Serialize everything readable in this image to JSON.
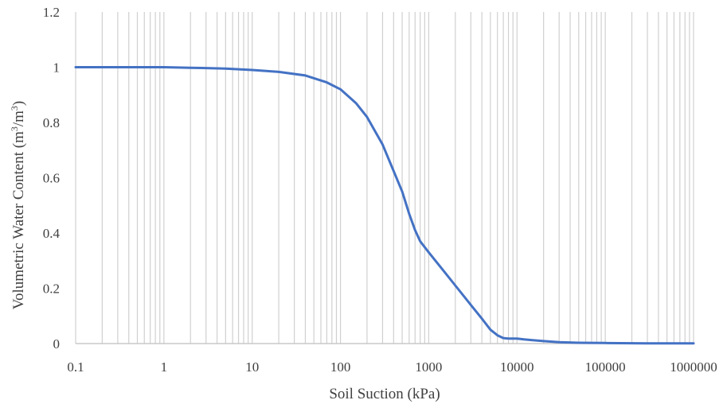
{
  "chart_data": {
    "type": "line",
    "xscale": "log",
    "xlabel": "Soil Suction (kPa)",
    "ylabel_main": "Volumetric Water Content (m",
    "ylabel_sup1": "3",
    "ylabel_mid": "/m",
    "ylabel_sup2": "3",
    "ylabel_end": ")",
    "xlim": [
      0.1,
      1000000
    ],
    "ylim": [
      0,
      1.2
    ],
    "x_ticks": [
      "0.1",
      "1",
      "10",
      "100",
      "1000",
      "10000",
      "100000",
      "1000000"
    ],
    "y_ticks": [
      "0",
      "0.2",
      "0.4",
      "0.6",
      "0.8",
      "1",
      "1.2"
    ],
    "grid": "vertical",
    "legend": "none",
    "series": [
      {
        "color": "#4472c4",
        "x": [
          0.1,
          0.5,
          1,
          2,
          5,
          10,
          20,
          40,
          70,
          100,
          150,
          200,
          300,
          500,
          600,
          700,
          800,
          1000,
          1500,
          2000,
          3000,
          4000,
          5000,
          6000,
          7000,
          8000,
          10000,
          12000,
          15000,
          20000,
          30000,
          50000,
          100000,
          300000,
          1000000
        ],
        "y": [
          1.0,
          1.0,
          1.0,
          0.998,
          0.995,
          0.99,
          0.983,
          0.97,
          0.945,
          0.92,
          0.87,
          0.82,
          0.72,
          0.55,
          0.47,
          0.41,
          0.37,
          0.33,
          0.26,
          0.21,
          0.14,
          0.09,
          0.05,
          0.03,
          0.02,
          0.018,
          0.018,
          0.015,
          0.012,
          0.009,
          0.005,
          0.003,
          0.002,
          0.001,
          0.001
        ]
      }
    ]
  }
}
